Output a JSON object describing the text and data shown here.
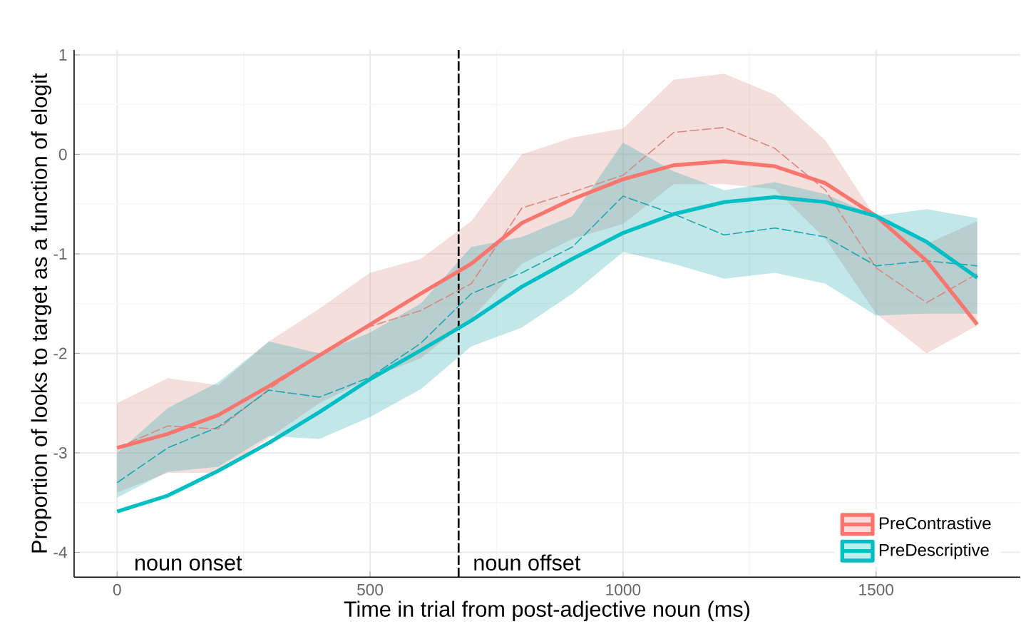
{
  "chart_data": {
    "type": "line",
    "xlabel": "Time in trial from post-adjective noun (ms)",
    "ylabel": "Proportion of looks to target as a function of elogit",
    "x": [
      0,
      100,
      200,
      300,
      400,
      500,
      600,
      700,
      800,
      900,
      1000,
      1100,
      1200,
      1300,
      1400,
      1500,
      1600,
      1700
    ],
    "series": [
      {
        "name": "PreContrastive",
        "color": "#f8766d",
        "values": [
          -2.95,
          -2.81,
          -2.62,
          -2.33,
          -2.02,
          -1.71,
          -1.4,
          -1.1,
          -0.69,
          -0.45,
          -0.25,
          -0.11,
          -0.07,
          -0.12,
          -0.29,
          -0.62,
          -1.07,
          -1.71
        ]
      },
      {
        "name": "PreDescriptive",
        "color": "#00bfc4",
        "values": [
          -3.59,
          -3.43,
          -3.18,
          -2.9,
          -2.59,
          -2.26,
          -1.97,
          -1.67,
          -1.33,
          -1.05,
          -0.79,
          -0.6,
          -0.48,
          -0.43,
          -0.48,
          -0.62,
          -0.88,
          -1.24
        ]
      },
      {
        "color": "#d9887f",
        "line_style": "dashed",
        "values": [
          -2.95,
          -2.73,
          -2.76,
          -2.36,
          -2.02,
          -1.73,
          -1.57,
          -1.3,
          -0.54,
          -0.38,
          -0.21,
          0.22,
          0.27,
          0.06,
          -0.36,
          -1.14,
          -1.49,
          -1.2
        ],
        "lower": [
          -3.4,
          -3.2,
          -3.2,
          -2.85,
          -2.5,
          -2.25,
          -2.05,
          -1.65,
          -1.1,
          -0.85,
          -0.7,
          -0.3,
          -0.3,
          -0.35,
          -0.85,
          -1.6,
          -2.0,
          -1.72
        ],
        "upper": [
          -2.5,
          -2.25,
          -2.32,
          -1.88,
          -1.55,
          -1.19,
          -1.05,
          -0.67,
          0.0,
          0.17,
          0.26,
          0.75,
          0.81,
          0.6,
          0.14,
          -0.64,
          -0.9,
          -0.67
        ]
      },
      {
        "color": "#1aa8ae",
        "line_style": "dashed",
        "values": [
          -3.3,
          -2.95,
          -2.74,
          -2.37,
          -2.44,
          -2.24,
          -1.9,
          -1.4,
          -1.19,
          -0.93,
          -0.42,
          -0.6,
          -0.81,
          -0.74,
          -0.83,
          -1.12,
          -1.07,
          -1.12
        ],
        "lower": [
          -3.45,
          -3.19,
          -3.14,
          -2.83,
          -2.86,
          -2.64,
          -2.36,
          -1.93,
          -1.74,
          -1.4,
          -0.98,
          -1.1,
          -1.25,
          -1.19,
          -1.3,
          -1.62,
          -1.6,
          -1.6
        ],
        "upper": [
          -3.0,
          -2.55,
          -2.29,
          -1.88,
          -2.0,
          -1.79,
          -1.5,
          -0.93,
          -0.83,
          -0.62,
          0.12,
          -0.17,
          -0.36,
          -0.28,
          -0.4,
          -0.62,
          -0.55,
          -0.64
        ]
      }
    ],
    "xlim": [
      -85,
      1785
    ],
    "ylim": [
      -4.25,
      1.05
    ],
    "xticks": [
      0,
      500,
      1000,
      1500
    ],
    "yticks": [
      -4,
      -3,
      -2,
      -1,
      0,
      1
    ],
    "ref_lines": [
      {
        "axis": "x",
        "value": 675,
        "color": "#000000",
        "line_style": "dashed"
      }
    ],
    "annotations": [
      "noun onset",
      "noun offset"
    ],
    "grid": true,
    "legend": "bottom right",
    "marker": "none",
    "line_style": "solid"
  }
}
